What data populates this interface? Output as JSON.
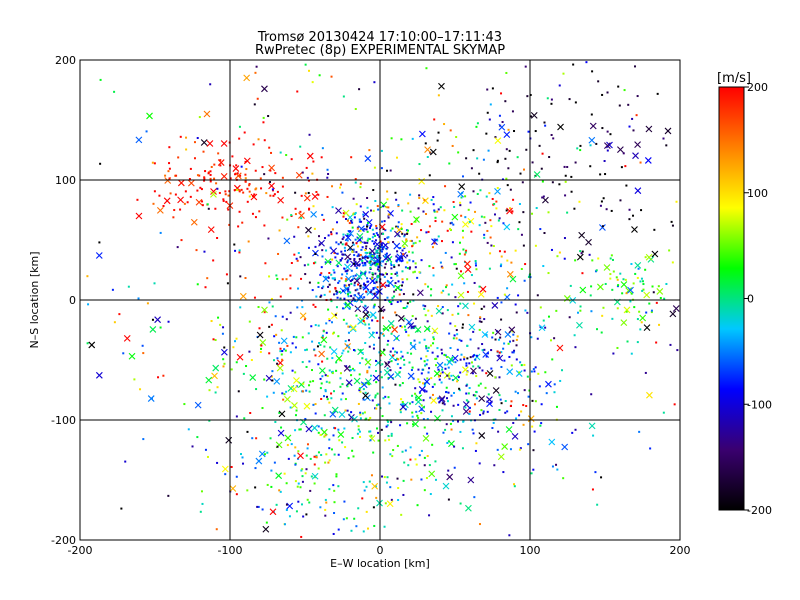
{
  "chart_data": {
    "type": "scatter",
    "title": "Tromsø 20130424 17:10:00–17:11:43",
    "subtitle": "RwPretec (8p) EXPERIMENTAL SKYMAP",
    "xlabel": "E–W location [km]",
    "ylabel": "N–S location [km]",
    "xlim": [
      -200,
      200
    ],
    "ylim": [
      -200,
      200
    ],
    "x_ticks": [
      -200,
      -100,
      0,
      100,
      200
    ],
    "y_ticks": [
      -200,
      -100,
      0,
      100,
      200
    ],
    "x_tick_labels": [
      "-200",
      "-100",
      "0",
      "100",
      "200"
    ],
    "y_tick_labels": [
      "-200",
      "-100",
      "0",
      "100",
      "200"
    ],
    "grid": true,
    "markers": [
      "dot",
      "x"
    ],
    "colorbar": {
      "label": "[m/s]",
      "range": [
        -200,
        200
      ],
      "ticks": [
        200,
        100,
        0,
        -100,
        -200
      ],
      "tick_labels": [
        "200",
        "100",
        "0",
        "-100",
        "-200"
      ],
      "colormap": [
        "#000000",
        "#3a0070",
        "#0000ff",
        "#00c8ff",
        "#00ff00",
        "#ffff00",
        "#ff8000",
        "#ff0000"
      ]
    },
    "clusters": [
      {
        "x": -95,
        "y": 95,
        "spread_x": 30,
        "spread_y": 18,
        "n": 150,
        "velocity": 190,
        "velocity_spread": 30
      },
      {
        "x": -60,
        "y": 25,
        "spread_x": 35,
        "spread_y": 60,
        "n": 60,
        "velocity": 200,
        "velocity_spread": 40
      },
      {
        "x": -10,
        "y": 30,
        "spread_x": 16,
        "spread_y": 20,
        "n": 420,
        "velocity": -80,
        "velocity_spread": 50
      },
      {
        "x": 30,
        "y": 60,
        "spread_x": 40,
        "spread_y": 25,
        "n": 200,
        "velocity": 90,
        "velocity_spread": 110
      },
      {
        "x": -5,
        "y": -60,
        "spread_x": 45,
        "spread_y": 40,
        "n": 500,
        "velocity": 0,
        "velocity_spread": 55
      },
      {
        "x": 55,
        "y": -60,
        "spread_x": 30,
        "spread_y": 35,
        "n": 220,
        "velocity": -80,
        "velocity_spread": 50
      },
      {
        "x": 160,
        "y": 10,
        "spread_x": 20,
        "spread_y": 20,
        "n": 80,
        "velocity": 20,
        "velocity_spread": 40
      },
      {
        "x": 120,
        "y": 120,
        "spread_x": 50,
        "spread_y": 50,
        "n": 150,
        "velocity": -180,
        "velocity_spread": 50
      },
      {
        "x": -30,
        "y": -150,
        "spread_x": 45,
        "spread_y": 35,
        "n": 160,
        "velocity": 10,
        "velocity_spread": 80
      },
      {
        "x": 0,
        "y": 0,
        "spread_x": 110,
        "spread_y": 110,
        "n": 700,
        "velocity": 0,
        "velocity_spread": 140
      }
    ]
  }
}
